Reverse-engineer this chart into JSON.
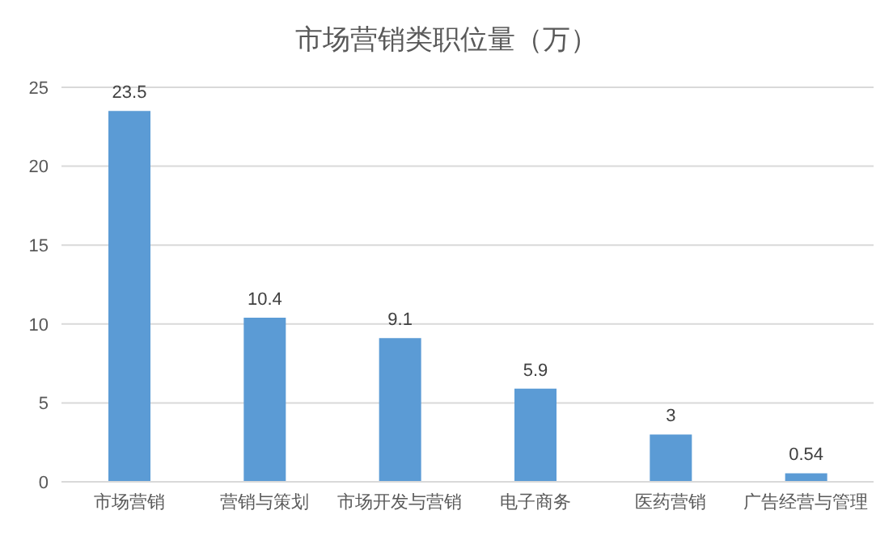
{
  "chart_data": {
    "type": "bar",
    "title": "市场营销类职位量（万）",
    "categories": [
      "市场营销",
      "营销与策划",
      "市场开发与营销",
      "电子商务",
      "医药营销",
      "广告经营与管理"
    ],
    "values": [
      23.5,
      10.4,
      9.1,
      5.9,
      3,
      0.54
    ],
    "color": "#5b9bd5",
    "ylim": [
      0,
      25
    ],
    "yticks": [
      0,
      5,
      10,
      15,
      20,
      25
    ],
    "grid": "y",
    "data_labels": true
  }
}
